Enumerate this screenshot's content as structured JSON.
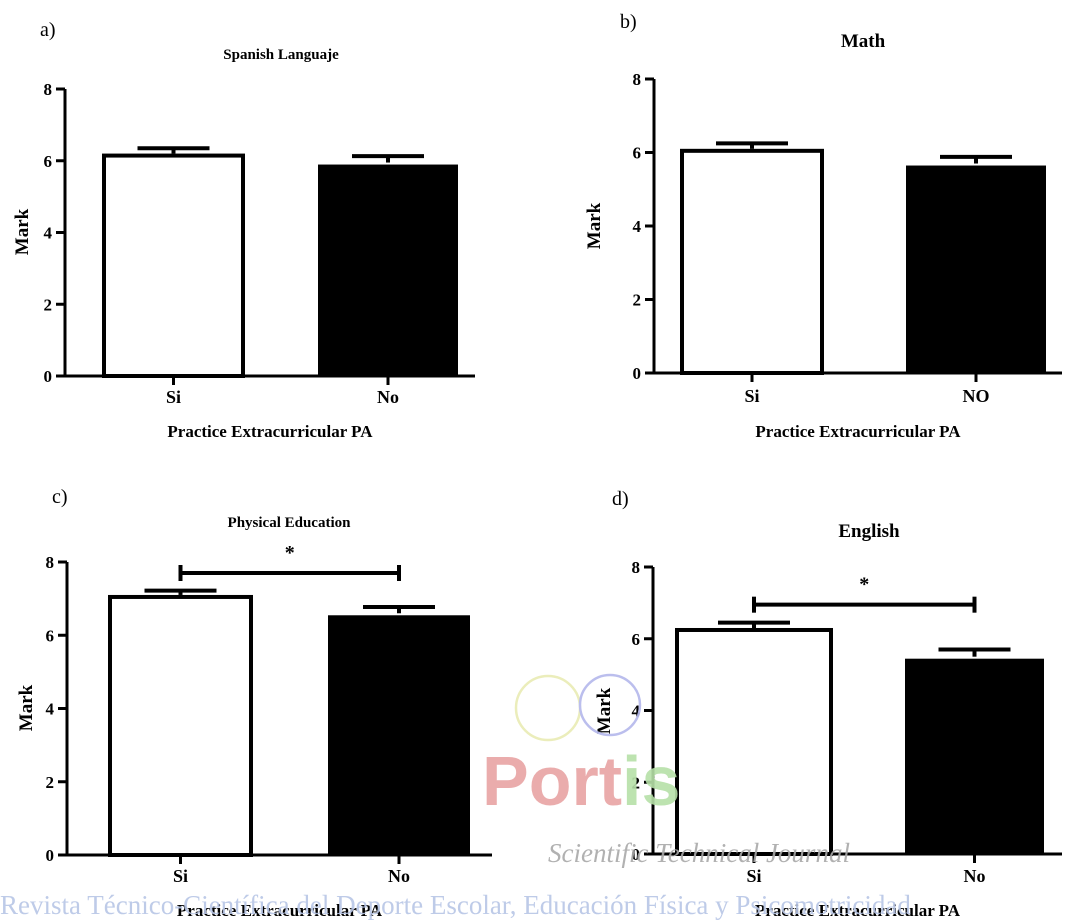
{
  "chart_data": [
    {
      "panel": "a)",
      "type": "bar",
      "title": "Spanish Languaje",
      "categories": [
        "Si",
        "No"
      ],
      "values": [
        6.2,
        5.95
      ],
      "errors": [
        0.15,
        0.18
      ],
      "fills": [
        "#ffffff",
        "#000000"
      ],
      "xlabel": "Practice Extracurricular PA",
      "ylabel": "Mark",
      "ylim": [
        0,
        8
      ],
      "yticks": [
        0,
        2,
        4,
        6,
        8
      ],
      "grid": false,
      "significance": null
    },
    {
      "panel": "b)",
      "type": "bar",
      "title": "Math",
      "categories": [
        "Si",
        "NO"
      ],
      "values": [
        6.1,
        5.7
      ],
      "errors": [
        0.15,
        0.18
      ],
      "fills": [
        "#ffffff",
        "#000000"
      ],
      "xlabel": "Practice Extracurricular PA",
      "ylabel": "Mark",
      "ylim": [
        0,
        8
      ],
      "yticks": [
        0,
        2,
        4,
        6,
        8
      ],
      "grid": false,
      "significance": null
    },
    {
      "panel": "c)",
      "type": "bar",
      "title": "Physical Education",
      "categories": [
        "Si",
        "No"
      ],
      "values": [
        7.1,
        6.6
      ],
      "errors": [
        0.12,
        0.17
      ],
      "fills": [
        "#ffffff",
        "#000000"
      ],
      "xlabel": "Practice Extracurricular PA",
      "ylabel": "Mark",
      "ylim": [
        0,
        8
      ],
      "yticks": [
        0,
        2,
        4,
        6,
        8
      ],
      "grid": false,
      "significance": {
        "mark": "*",
        "level": 7.7
      }
    },
    {
      "panel": "d)",
      "type": "bar",
      "title": "English",
      "categories": [
        "Si",
        "No"
      ],
      "values": [
        6.3,
        5.5
      ],
      "errors": [
        0.15,
        0.2
      ],
      "fills": [
        "#ffffff",
        "#000000"
      ],
      "xlabel": "Practice Extracurricular PA",
      "ylabel": "Mark",
      "ylim": [
        0,
        8
      ],
      "yticks": [
        0,
        2,
        4,
        6,
        8
      ],
      "grid": false,
      "significance": {
        "mark": "*",
        "level": 6.95
      }
    }
  ],
  "watermark": {
    "logo_text": "Portis",
    "subtitle": "Scientific Technical Journal",
    "footer": "Revista Técnico-Científica del Deporte Escolar, Educación Física y Psicomotricidad",
    "colors": {
      "P": "#e8a4a4",
      "o": "#e8a4a4",
      "r": "#e8a4a4",
      "t": "#e8a4a4",
      "i": "#b6e0a8",
      "s": "#b6e0a8",
      "ring1": "#e9ecb4",
      "ring2": "#b4b8ec"
    }
  }
}
